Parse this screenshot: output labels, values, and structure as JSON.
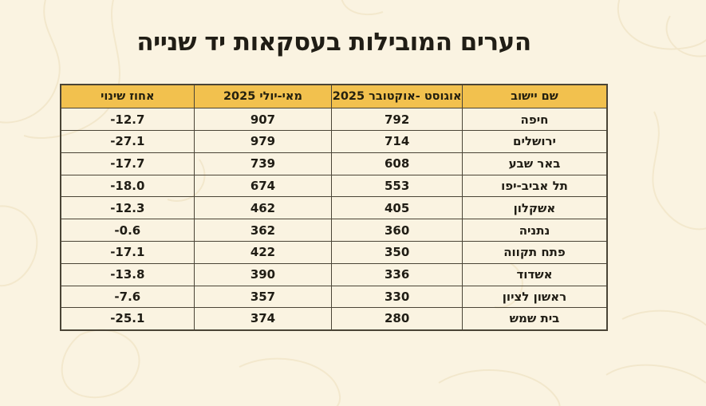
{
  "page": {
    "title": "הערים המובילות בעסקאות יד שנייה",
    "direction": "rtl",
    "colors": {
      "background": "#FAF3E1",
      "header_fill": "#F2C14E",
      "border": "#4A4436",
      "text": "#201D15",
      "contour_line": "#F0E4C6"
    }
  },
  "table": {
    "columns": [
      {
        "key": "city",
        "label": "שם יישוב"
      },
      {
        "key": "aug_oct",
        "label": "אוגוסט -אוקטובר 2025"
      },
      {
        "key": "may_jul",
        "label": "מאי-יולי 2025"
      },
      {
        "key": "pct",
        "label": "אחוז שינוי"
      }
    ],
    "rows": [
      {
        "city": "חיפה",
        "aug_oct": "792",
        "may_jul": "907",
        "pct": "-12.7"
      },
      {
        "city": "ירושלים",
        "aug_oct": "714",
        "may_jul": "979",
        "pct": "-27.1"
      },
      {
        "city": "באר שבע",
        "aug_oct": "608",
        "may_jul": "739",
        "pct": "-17.7"
      },
      {
        "city": "תל אביב-יפו",
        "aug_oct": "553",
        "may_jul": "674",
        "pct": "-18.0"
      },
      {
        "city": "אשקלון",
        "aug_oct": "405",
        "may_jul": "462",
        "pct": "-12.3"
      },
      {
        "city": "נתניה",
        "aug_oct": "360",
        "may_jul": "362",
        "pct": "-0.6"
      },
      {
        "city": "פתח תקווה",
        "aug_oct": "350",
        "may_jul": "422",
        "pct": "-17.1"
      },
      {
        "city": "אשדוד",
        "aug_oct": "336",
        "may_jul": "390",
        "pct": "-13.8"
      },
      {
        "city": "ראשון לציון",
        "aug_oct": "330",
        "may_jul": "357",
        "pct": "-7.6"
      },
      {
        "city": "בית שמש",
        "aug_oct": "280",
        "may_jul": "374",
        "pct": "-25.1"
      }
    ]
  },
  "chart_data": {
    "type": "table",
    "title": "הערים המובילות בעסקאות יד שנייה",
    "columns": [
      "שם יישוב",
      "אוגוסט -אוקטובר 2025",
      "מאי-יולי 2025",
      "אחוז שינוי"
    ],
    "rows": [
      [
        "חיפה",
        792,
        907,
        -12.7
      ],
      [
        "ירושלים",
        714,
        979,
        -27.1
      ],
      [
        "באר שבע",
        608,
        739,
        -17.7
      ],
      [
        "תל אביב-יפו",
        553,
        674,
        -18.0
      ],
      [
        "אשקלון",
        405,
        462,
        -12.3
      ],
      [
        "נתניה",
        360,
        362,
        -0.6
      ],
      [
        "פתח תקווה",
        350,
        422,
        -17.1
      ],
      [
        "אשדוד",
        336,
        390,
        -13.8
      ],
      [
        "ראשון לציון",
        330,
        357,
        -7.6
      ],
      [
        "בית שמש",
        280,
        374,
        -25.1
      ]
    ]
  }
}
